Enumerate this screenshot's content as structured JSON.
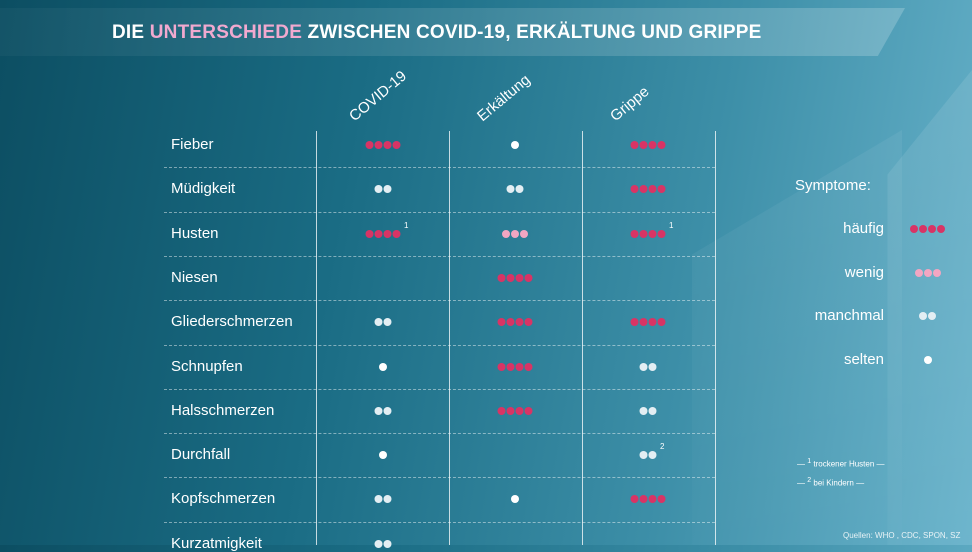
{
  "header": {
    "title_pre": "DIE ",
    "title_highlight": "UNTERSCHIEDE",
    "title_post": " ZWISCHEN COVID-19, ERKÄLTUNG UND GRIPPE"
  },
  "columns": [
    "COVID-19",
    "Erkältung",
    "Grippe"
  ],
  "rows": [
    {
      "label": "Fieber",
      "cells": [
        "haeufig",
        "selten",
        "haeufig"
      ]
    },
    {
      "label": "Müdigkeit",
      "cells": [
        "manchmal",
        "manchmal",
        "haeufig"
      ]
    },
    {
      "label": "Husten",
      "cells": [
        "haeufig",
        "wenig",
        "haeufig"
      ],
      "footnotes": [
        "1",
        "",
        "1"
      ]
    },
    {
      "label": "Niesen",
      "cells": [
        "",
        "haeufig",
        ""
      ]
    },
    {
      "label": "Gliederschmerzen",
      "cells": [
        "manchmal",
        "haeufig",
        "haeufig"
      ]
    },
    {
      "label": "Schnupfen",
      "cells": [
        "selten",
        "haeufig",
        "manchmal"
      ]
    },
    {
      "label": "Halsschmerzen",
      "cells": [
        "manchmal",
        "haeufig",
        "manchmal"
      ]
    },
    {
      "label": "Durchfall",
      "cells": [
        "selten",
        "",
        "manchmal"
      ],
      "footnotes": [
        "",
        "",
        "2"
      ]
    },
    {
      "label": "Kopfschmerzen",
      "cells": [
        "manchmal",
        "selten",
        "haeufig"
      ]
    },
    {
      "label": "Kurzatmigkeit",
      "cells": [
        "manchmal",
        "",
        ""
      ]
    }
  ],
  "legend": {
    "title": "Symptome:",
    "items": [
      {
        "key": "haeufig",
        "label": "häufig",
        "count": 4,
        "color": "#d83465"
      },
      {
        "key": "wenig",
        "label": "wenig",
        "count": 3,
        "color": "#f2a6c2"
      },
      {
        "key": "manchmal",
        "label": "manchmal",
        "count": 2,
        "color": "#e3eef3"
      },
      {
        "key": "selten",
        "label": "selten",
        "count": 1,
        "color": "#ffffff"
      }
    ]
  },
  "footnotes": [
    {
      "mark": "1",
      "text": "trockener Husten"
    },
    {
      "mark": "2",
      "text": "bei Kindern"
    }
  ],
  "sources": "Quellen: WHO , CDC, SPON, SZ"
}
